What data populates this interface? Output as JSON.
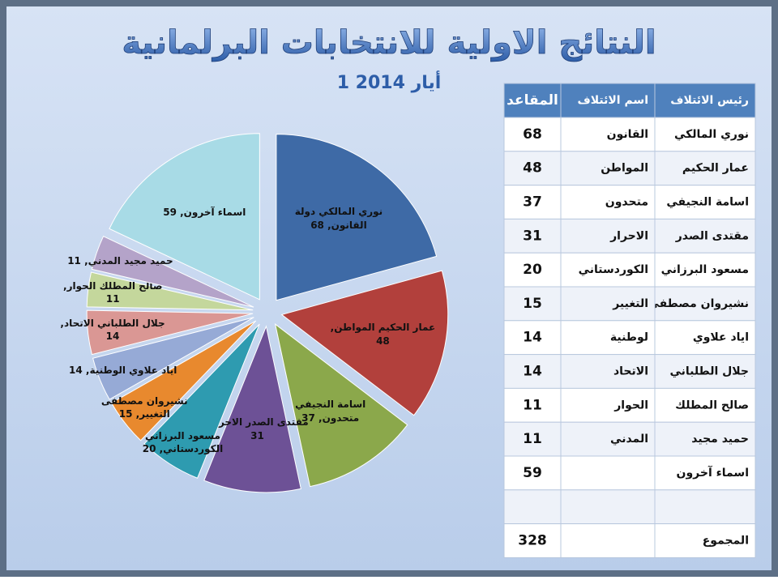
{
  "chart_data": {
    "type": "pie",
    "title": "النتائج الاولية للانتخابات البرلمانية",
    "subtitle": "1 أيار 2014",
    "values": [
      68,
      48,
      37,
      31,
      20,
      15,
      14,
      14,
      11,
      11,
      59
    ],
    "value_labels": [
      "نوري المالكي دولة القانون, 68",
      "عمار الحكيم المواطن, 48",
      "اسامة النجيفي متحدون, 37",
      "مقتدى الصدر الاحرار, 31",
      "مسعود البرزاني الكوردستاني, 20",
      "نشيروان مصطفى التغيير, 15",
      "اياد علاوي الوطنية, 14",
      "جلال الطلباني الاتحاد, 14",
      "صالح المطلك الحوار, 11",
      "حميد مجيد المدني, 11",
      "اسماء آخرون, 59"
    ],
    "colors": [
      "#3e6aa6",
      "#b2403c",
      "#8ba84b",
      "#6d5196",
      "#2e9bb0",
      "#e8892e",
      "#96aad6",
      "#da9794",
      "#c4d79c",
      "#b4a3c9",
      "#a8dbe6"
    ]
  },
  "table": {
    "header": [
      "رئيس الائتلاف",
      "اسم الائتلاف",
      "المقاعد"
    ],
    "rows": [
      [
        "نوري المالكي",
        "القانون",
        68
      ],
      [
        "عمار الحكيم",
        "المواطن",
        48
      ],
      [
        "اسامة النجيفي",
        "متحدون",
        37
      ],
      [
        "مقتدى الصدر",
        "الاحرار",
        31
      ],
      [
        "مسعود البرزاني",
        "الكوردستاني",
        20
      ],
      [
        "نشيروان مصطفى",
        "التغيير",
        15
      ],
      [
        "اياد علاوي",
        "لوطنية",
        14
      ],
      [
        "جلال الطلباني",
        "الاتحاد",
        14
      ],
      [
        "صالح المطلك",
        "الحوار",
        11
      ],
      [
        "حميد مجيد",
        "المدني",
        11
      ],
      [
        "اسماء آخرون",
        null,
        59
      ]
    ],
    "total": {
      "label": "المجموع",
      "value": 328
    }
  }
}
